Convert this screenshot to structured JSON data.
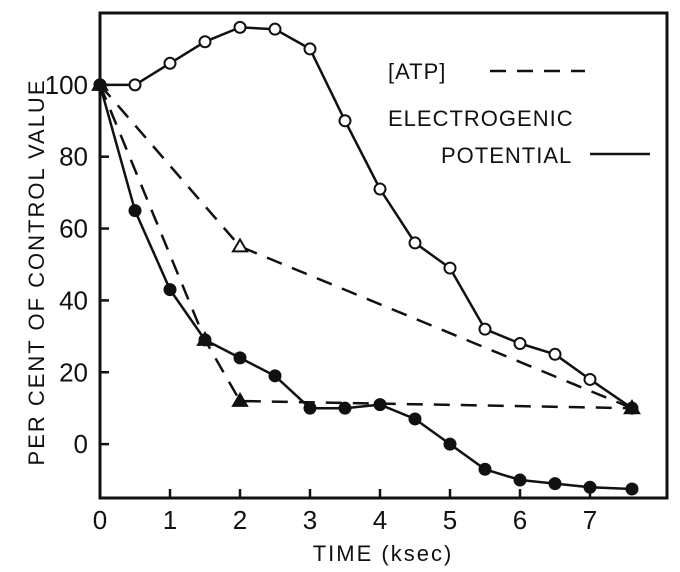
{
  "chart_data": {
    "type": "line",
    "xlabel": "TIME  (ksec)",
    "ylabel": "PER CENT OF CONTROL VALUE",
    "xlim": [
      0,
      8.1
    ],
    "ylim": [
      -15,
      120
    ],
    "x_ticks": [
      0,
      1,
      2,
      3,
      4,
      5,
      6,
      7
    ],
    "y_ticks": [
      0,
      20,
      40,
      60,
      80,
      100
    ],
    "grid": false,
    "legend": {
      "position": "top-right",
      "entries": [
        {
          "label": "[ATP]",
          "style": "dashed"
        },
        {
          "label_lines": [
            "ELECTROGENIC",
            "POTENTIAL"
          ],
          "style": "solid"
        }
      ]
    },
    "series": [
      {
        "style": "solid",
        "marker": "open-circle",
        "x": [
          0,
          0.5,
          1,
          1.5,
          2,
          2.5,
          3,
          3.5,
          4,
          4.5,
          5,
          5.5,
          6,
          6.5,
          7,
          7.6
        ],
        "y": [
          100,
          100,
          106,
          112,
          116,
          115.5,
          110,
          90,
          71,
          56,
          49,
          32,
          28,
          25,
          18,
          10
        ]
      },
      {
        "style": "solid",
        "marker": "filled-circle",
        "x": [
          0,
          0.5,
          1,
          1.5,
          2,
          2.5,
          3,
          3.5,
          4,
          4.5,
          5,
          5.5,
          6,
          6.5,
          7,
          7.6
        ],
        "y": [
          100,
          65,
          43,
          29,
          24,
          19,
          10,
          10,
          11,
          7,
          0,
          -7,
          -10,
          -11,
          -12,
          -12.5
        ]
      },
      {
        "style": "dashed",
        "marker": "open-triangle",
        "x": [
          0,
          2,
          7.6
        ],
        "y": [
          100,
          55,
          10
        ]
      },
      {
        "style": "dashed",
        "marker": "filled-triangle",
        "x": [
          0,
          1.5,
          2,
          7.6
        ],
        "y": [
          100,
          29,
          12,
          10
        ]
      }
    ]
  }
}
